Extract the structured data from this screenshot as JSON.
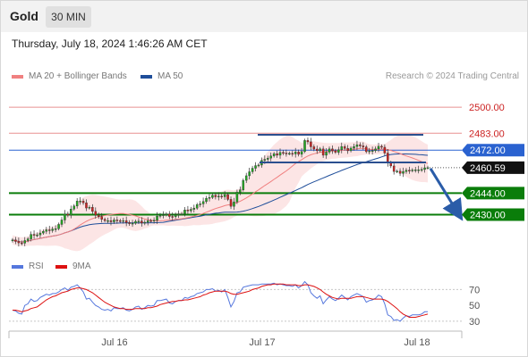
{
  "header": {
    "symbol": "Gold",
    "timeframe": "30 MIN",
    "timestamp": "Thursday, July 18, 2024 1:46:26 AM CET"
  },
  "legend": {
    "bollinger_label": "MA 20 + Bollinger Bands",
    "ma50_label": "MA 50",
    "copyright": "Research © 2024 Trading Central"
  },
  "colors": {
    "up": "#22aa22",
    "down": "#cc2222",
    "bollinger": "#f08080",
    "ma50": "#1f4e9a",
    "support": "#0a7d0a",
    "resistance_light": "#e89090",
    "pivot_blue": "#2a62d0",
    "rsi": "#5577dd",
    "rsi_ma": "#dd1111",
    "arrow": "#2a5ca8"
  },
  "chart_data": [
    {
      "type": "candlestick",
      "title": "Gold 30 MIN",
      "x_ticks": [
        "Jul 16",
        "Jul 17",
        "Jul 18"
      ],
      "ylim": [
        2407,
        2514
      ],
      "levels": [
        {
          "value": 2500.0,
          "label": "2500.00",
          "kind": "resistance-light"
        },
        {
          "value": 2483.0,
          "label": "2483.00",
          "kind": "resistance-light"
        },
        {
          "value": 2472.0,
          "label": "2472.00",
          "kind": "pivot"
        },
        {
          "value": 2460.59,
          "label": "2460.59",
          "kind": "last-price"
        },
        {
          "value": 2444.0,
          "label": "2444.00",
          "kind": "support"
        },
        {
          "value": 2430.0,
          "label": "2430.00",
          "kind": "support"
        }
      ],
      "last_price": 2460.59,
      "range_box": {
        "top": 2482,
        "bottom": 2464
      },
      "closes": [
        2413.5,
        2412.5,
        2411.6,
        2411.4,
        2413.1,
        2414.2,
        2417.1,
        2416.6,
        2416.8,
        2418.0,
        2419.1,
        2420.1,
        2419.6,
        2420.6,
        2420.8,
        2423.6,
        2426.5,
        2430.4,
        2429.6,
        2433.6,
        2435.6,
        2438.8,
        2438.8,
        2437.7,
        2434.3,
        2434.8,
        2432.1,
        2429.7,
        2428.7,
        2426.9,
        2426.1,
        2426.1,
        2425.3,
        2426.5,
        2426.1,
        2425.8,
        2426.1,
        2424.8,
        2424.1,
        2424.4,
        2425.6,
        2425.8,
        2424.5,
        2425.0,
        2426.1,
        2425.9,
        2426.3,
        2429.0,
        2429.5,
        2429.9,
        2430.4,
        2428.8,
        2428.6,
        2429.8,
        2430.5,
        2430.5,
        2433.0,
        2432.5,
        2433.4,
        2434.2,
        2436.5,
        2437.0,
        2438.5,
        2440.6,
        2441.2,
        2442.6,
        2441.6,
        2442.0,
        2441.6,
        2443.0,
        2439.9,
        2435.4,
        2438.3,
        2444.7,
        2446.1,
        2452.3,
        2455.3,
        2457.9,
        2460.2,
        2461.9,
        2462.3,
        2465.3,
        2466.0,
        2466.8,
        2468.2,
        2469.7,
        2468.7,
        2470.5,
        2470.1,
        2469.8,
        2469.9,
        2469.5,
        2470.8,
        2469.3,
        2471.1,
        2478.3,
        2477.4,
        2474.2,
        2472.7,
        2471.6,
        2472.8,
        2468.7,
        2470.7,
        2472.8,
        2471.6,
        2470.6,
        2472.3,
        2474.3,
        2473.1,
        2471.6,
        2473.3,
        2474.3,
        2475.5,
        2474.8,
        2474.1,
        2471.0,
        2471.5,
        2471.7,
        2472.8,
        2474.5,
        2473.9,
        2470.1,
        2463.6,
        2461.7,
        2458.1,
        2458.3,
        2456.9,
        2458.0,
        2458.9,
        2458.6,
        2459.1,
        2459.2,
        2459.2,
        2459.4,
        2460.5,
        2460.6
      ],
      "forecast_arrow": {
        "from": 2460.59,
        "to": 2430.0
      }
    },
    {
      "type": "line",
      "title": "RSI",
      "series": [
        {
          "name": "RSI",
          "values": [
            44,
            43,
            40,
            39,
            50,
            52,
            58,
            55,
            56,
            60,
            62,
            64,
            63,
            65,
            65,
            67,
            70,
            72,
            69,
            73,
            74,
            76,
            72,
            67,
            58,
            59,
            54,
            50,
            48,
            45,
            44,
            45,
            43,
            47,
            46,
            46,
            47,
            44,
            43,
            45,
            48,
            49,
            45,
            47,
            50,
            49,
            50,
            56,
            56,
            57,
            58,
            53,
            52,
            55,
            56,
            56,
            60,
            59,
            61,
            62,
            65,
            66,
            67,
            70,
            70,
            71,
            68,
            69,
            67,
            70,
            60,
            48,
            55,
            66,
            67,
            73,
            74,
            75,
            76,
            76,
            76,
            77,
            77,
            77,
            77,
            78,
            76,
            77,
            76,
            75,
            75,
            74,
            76,
            72,
            75,
            80,
            76,
            66,
            62,
            59,
            62,
            52,
            57,
            61,
            58,
            56,
            59,
            63,
            60,
            57,
            61,
            63,
            65,
            63,
            61,
            54,
            56,
            57,
            59,
            63,
            61,
            52,
            38,
            36,
            31,
            32,
            30,
            34,
            37,
            36,
            38,
            38,
            38,
            39,
            42,
            42
          ]
        },
        {
          "name": "9MA",
          "values": [
            44,
            44,
            43,
            42,
            43,
            44,
            46,
            47,
            48,
            51,
            54,
            57,
            59,
            61,
            62,
            64,
            66,
            67,
            68,
            70,
            71,
            72,
            72,
            71,
            70,
            68,
            66,
            63,
            60,
            57,
            54,
            52,
            50,
            48,
            47,
            46,
            46,
            45,
            45,
            45,
            46,
            46,
            46,
            46,
            47,
            47,
            48,
            49,
            51,
            52,
            53,
            54,
            55,
            55,
            56,
            56,
            57,
            57,
            58,
            59,
            60,
            61,
            63,
            64,
            66,
            67,
            68,
            68,
            68,
            68,
            67,
            65,
            64,
            64,
            65,
            66,
            67,
            68,
            70,
            71,
            72,
            74,
            75,
            76,
            76,
            77,
            77,
            77,
            77,
            76,
            76,
            76,
            76,
            75,
            75,
            76,
            76,
            75,
            74,
            72,
            70,
            67,
            64,
            62,
            60,
            59,
            58,
            59,
            59,
            59,
            59,
            60,
            61,
            61,
            61,
            60,
            59,
            58,
            58,
            58,
            58,
            57,
            55,
            52,
            49,
            46,
            42,
            39,
            37,
            35,
            35,
            35,
            36,
            37,
            38,
            39
          ]
        }
      ],
      "ylim": [
        22,
        84
      ],
      "y_ticks": [
        70,
        50,
        30
      ],
      "reference_lines": [
        70,
        30
      ]
    }
  ]
}
